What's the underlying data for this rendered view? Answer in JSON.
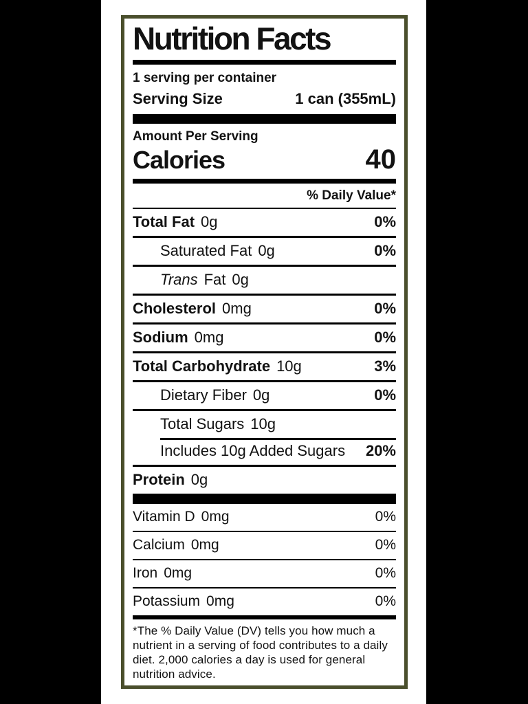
{
  "colors": {
    "border": "#4a4f2c",
    "bar": "#000000",
    "text": "#121212",
    "background": "#ffffff",
    "side_bars": "#000000"
  },
  "label": {
    "title": "Nutrition Facts",
    "servings_per_container": "1 serving per container",
    "serving_size_label": "Serving Size",
    "serving_size_value": "1 can (355mL)",
    "amount_per_serving": "Amount Per Serving",
    "calories_label": "Calories",
    "calories_value": "40",
    "daily_value_header": "% Daily Value*",
    "nutrients": [
      {
        "name": "Total Fat",
        "amount": "0g",
        "dv": "0%",
        "name_bold": true,
        "dv_bold": true,
        "indent": false,
        "sep": "none"
      },
      {
        "name": "Saturated Fat",
        "amount": "0g",
        "dv": "0%",
        "name_bold": false,
        "dv_bold": true,
        "indent": true,
        "sep": "full"
      },
      {
        "name": "Fat",
        "italic_prefix": "Trans",
        "amount": "0g",
        "dv": "",
        "name_bold": false,
        "dv_bold": false,
        "indent": true,
        "sep": "full"
      },
      {
        "name": "Cholesterol",
        "amount": "0mg",
        "dv": "0%",
        "name_bold": true,
        "dv_bold": true,
        "indent": false,
        "sep": "full"
      },
      {
        "name": "Sodium",
        "amount": "0mg",
        "dv": "0%",
        "name_bold": true,
        "dv_bold": true,
        "indent": false,
        "sep": "full"
      },
      {
        "name": "Total Carbohydrate",
        "amount": "10g",
        "dv": "3%",
        "name_bold": true,
        "dv_bold": true,
        "indent": false,
        "sep": "full"
      },
      {
        "name": "Dietary Fiber",
        "amount": "0g",
        "dv": "0%",
        "name_bold": false,
        "dv_bold": true,
        "indent": true,
        "sep": "full"
      },
      {
        "name": "Total Sugars",
        "amount": "10g",
        "dv": "",
        "name_bold": false,
        "dv_bold": false,
        "indent": true,
        "sep": "full"
      },
      {
        "name": "Includes 10g Added Sugars",
        "amount": "",
        "dv": "20%",
        "name_bold": false,
        "dv_bold": true,
        "indent": true,
        "sep": "indent"
      },
      {
        "name": "Protein",
        "amount": "0g",
        "dv": "",
        "name_bold": true,
        "dv_bold": false,
        "indent": false,
        "sep": "full"
      }
    ],
    "vitamins": [
      {
        "name": "Vitamin D",
        "amount": "0mg",
        "dv": "0%",
        "name_bold": false,
        "dv_bold": false,
        "indent": false,
        "sep": "none"
      },
      {
        "name": "Calcium",
        "amount": "0mg",
        "dv": "0%",
        "name_bold": false,
        "dv_bold": false,
        "indent": false,
        "sep": "thin"
      },
      {
        "name": "Iron",
        "amount": "0mg",
        "dv": "0%",
        "name_bold": false,
        "dv_bold": false,
        "indent": false,
        "sep": "thin"
      },
      {
        "name": "Potassium",
        "amount": "0mg",
        "dv": "0%",
        "name_bold": false,
        "dv_bold": false,
        "indent": false,
        "sep": "thin"
      }
    ],
    "footnote": "*The % Daily Value (DV) tells you how much a nutrient in a serving of food contributes to a daily diet. 2,000 calories a day is used for general nutrition advice."
  }
}
